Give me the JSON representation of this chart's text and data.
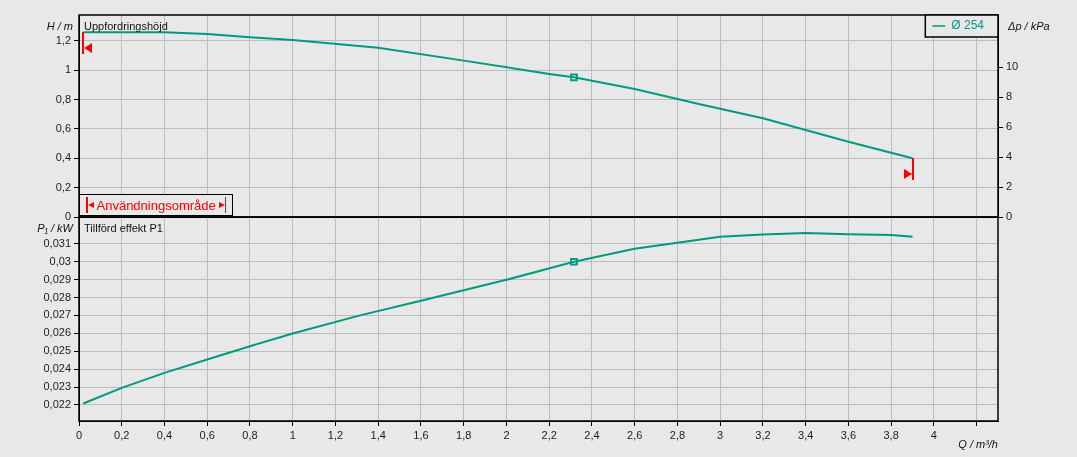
{
  "chart_data": [
    {
      "type": "line",
      "title": "Uppfordringshöjd",
      "ylabel": "H / m",
      "y2label": "Δp / kPa",
      "xlim": [
        0,
        4.3
      ],
      "ylim": [
        0,
        1.377
      ],
      "y2lim": [
        0,
        13.5
      ],
      "xticks": [
        0,
        0.2,
        0.4,
        0.6,
        0.8,
        1,
        1.2,
        1.4,
        1.6,
        1.8,
        2,
        2.2,
        2.4,
        2.6,
        2.8,
        3,
        3.2,
        3.4,
        3.6,
        3.8,
        4,
        4.2
      ],
      "yticks": [
        0,
        {
          "value": 0.2,
          "label": "0,2"
        },
        {
          "value": 0.4,
          "label": "0,4"
        },
        {
          "value": 0.6,
          "label": "0,6"
        },
        {
          "value": 0.8,
          "label": "0,8"
        },
        1,
        {
          "value": 1.2,
          "label": "1,2"
        }
      ],
      "y2ticks": [
        0,
        2,
        4,
        6,
        8,
        10
      ],
      "tick_labels": "y",
      "grid": true,
      "legend": "top right",
      "marker": "none",
      "annotations": [
        "Användningsområde"
      ],
      "series": [
        {
          "name": "Ø 254",
          "color": "#009a80",
          "x": [
            0.02,
            0.4,
            0.6,
            0.8,
            1.0,
            1.4,
            1.8,
            2.2,
            2.316,
            2.6,
            2.9,
            3.2,
            3.6,
            3.9
          ],
          "values": [
            1.26,
            1.26,
            1.247,
            1.225,
            1.207,
            1.154,
            1.066,
            0.975,
            0.952,
            0.873,
            0.77,
            0.673,
            0.513,
            0.4
          ]
        },
        {
          "type": "scatter",
          "marker": "square",
          "color": "#009a80",
          "x": [
            2.316
          ],
          "values": [
            0.952
          ]
        }
      ]
    },
    {
      "type": "line",
      "title": "Tillförd effekt P1",
      "ylabel": "P₁ / kW",
      "xlabel": "Q / m³/h",
      "xlim": [
        0,
        4.3
      ],
      "ylim": [
        0.0211,
        0.0325
      ],
      "xticks": [
        0,
        {
          "value": 0.2,
          "label": "0,2"
        },
        {
          "value": 0.4,
          "label": "0,4"
        },
        {
          "value": 0.6,
          "label": "0,6"
        },
        {
          "value": 0.8,
          "label": "0,8"
        },
        1,
        {
          "value": 1.2,
          "label": "1,2"
        },
        {
          "value": 1.4,
          "label": "1,4"
        },
        {
          "value": 1.6,
          "label": "1,6"
        },
        {
          "value": 1.8,
          "label": "1,8"
        },
        2,
        {
          "value": 2.2,
          "label": "2,2"
        },
        {
          "value": 2.4,
          "label": "2,4"
        },
        {
          "value": 2.6,
          "label": "2,6"
        },
        {
          "value": 2.8,
          "label": "2,8"
        },
        3,
        {
          "value": 3.2,
          "label": "3,2"
        },
        {
          "value": 3.4,
          "label": "3,4"
        },
        {
          "value": 3.6,
          "label": "3,6"
        },
        {
          "value": 3.8,
          "label": "3,8"
        },
        4,
        {
          "value": 4.2,
          "label": null
        }
      ],
      "yticks": [
        {
          "value": 0.022,
          "label": "0,022"
        },
        {
          "value": 0.023,
          "label": "0,023"
        },
        {
          "value": 0.024,
          "label": "0,024"
        },
        {
          "value": 0.025,
          "label": "0,025"
        },
        {
          "value": 0.026,
          "label": "0,026"
        },
        {
          "value": 0.027,
          "label": "0,027"
        },
        {
          "value": 0.028,
          "label": "0,028"
        },
        {
          "value": 0.029,
          "label": "0,029"
        },
        {
          "value": 0.03,
          "label": "0,03"
        },
        {
          "value": 0.031,
          "label": "0,031"
        }
      ],
      "grid": true,
      "marker": "none",
      "series": [
        {
          "color": "#009a80",
          "x": [
            0.02,
            0.2,
            0.4,
            0.6,
            0.8,
            1.0,
            1.31,
            1.6,
            2.0,
            2.316,
            2.6,
            2.8,
            3.0,
            3.2,
            3.4,
            3.6,
            3.8,
            3.9
          ],
          "values": [
            0.02208,
            0.02295,
            0.02379,
            0.02454,
            0.02528,
            0.02599,
            0.02699,
            0.02782,
            0.02899,
            0.03,
            0.03073,
            0.03106,
            0.0314,
            0.03152,
            0.0316,
            0.03154,
            0.03149,
            0.0314
          ]
        },
        {
          "type": "scatter",
          "marker": "square",
          "color": "#009a80",
          "x": [
            2.316
          ],
          "values": [
            0.03
          ]
        }
      ]
    }
  ]
}
